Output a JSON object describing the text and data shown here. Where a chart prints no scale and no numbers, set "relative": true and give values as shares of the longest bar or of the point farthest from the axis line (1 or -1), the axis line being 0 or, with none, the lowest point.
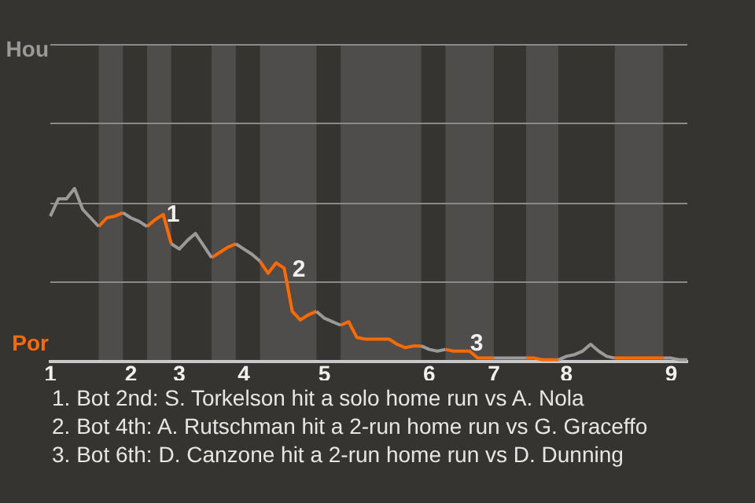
{
  "chart_data": {
    "type": "line",
    "relative": true,
    "legend": false,
    "ref_lines": [
      {
        "axis": "y",
        "value": 0.46,
        "color": "#8a8a8a"
      },
      {
        "axis": "y",
        "value": 0.92,
        "color": "#8a8a8a"
      },
      {
        "axis": "y",
        "value": 1.38,
        "color": "#8a8a8a"
      }
    ],
    "marker": "none",
    "line_style": "solid",
    "categories": [
      "1",
      null,
      null,
      null,
      null,
      null,
      null,
      null,
      null,
      null,
      "2",
      null,
      null,
      null,
      null,
      null,
      "3",
      null,
      null,
      null,
      null,
      null,
      null,
      null,
      "4",
      null,
      null,
      null,
      null,
      null,
      null,
      null,
      null,
      null,
      "5",
      null,
      null,
      null,
      null,
      null,
      null,
      null,
      null,
      null,
      null,
      null,
      null,
      "6",
      null,
      null,
      null,
      null,
      null,
      null,
      null,
      "7",
      null,
      null,
      null,
      null,
      null,
      null,
      null,
      null,
      "8",
      null,
      null,
      null,
      null,
      null,
      null,
      null,
      null,
      null,
      null,
      null,
      null,
      "9",
      null,
      null
    ],
    "series": [
      {
        "name": "Hou",
        "color": "#9a9a9a",
        "values": [
          0.84,
          0.94,
          0.94,
          1,
          0.88,
          0.83,
          0.78,
          null,
          null,
          0.86,
          0.83,
          0.81,
          0.78,
          null,
          null,
          0.68,
          0.65,
          0.7,
          0.74,
          0.67,
          0.6,
          null,
          null,
          0.68,
          0.65,
          0.62,
          0.58,
          null,
          null,
          null,
          null,
          null,
          null,
          0.29,
          0.25,
          0.23,
          0.21,
          null,
          null,
          null,
          null,
          null,
          null,
          null,
          null,
          null,
          0.09,
          0.07,
          0.06,
          0.07,
          null,
          null,
          null,
          null,
          null,
          0.02,
          0.02,
          0.02,
          0.02,
          0.02,
          null,
          null,
          null,
          0.01,
          0.03,
          0.04,
          0.06,
          0.1,
          0.06,
          0.03,
          0.02,
          null,
          null,
          null,
          null,
          null,
          0.02,
          0.02,
          0.01,
          0.01
        ]
      },
      {
        "name": "Por",
        "color": "#ff6a00",
        "values": [
          null,
          null,
          null,
          null,
          null,
          null,
          0.78,
          0.83,
          0.84,
          0.86,
          null,
          null,
          0.78,
          0.82,
          0.85,
          0.68,
          null,
          null,
          null,
          null,
          0.6,
          0.63,
          0.66,
          0.68,
          null,
          null,
          0.58,
          0.51,
          0.57,
          0.54,
          0.29,
          0.24,
          0.27,
          0.29,
          null,
          null,
          0.21,
          0.23,
          0.14,
          0.13,
          0.13,
          0.13,
          0.13,
          0.1,
          0.08,
          0.09,
          0.09,
          null,
          null,
          0.07,
          0.06,
          0.06,
          0.06,
          0.02,
          0.02,
          0.02,
          null,
          null,
          null,
          0.02,
          0.02,
          0.01,
          0.01,
          0.01,
          null,
          null,
          null,
          null,
          null,
          null,
          0.02,
          0.02,
          0.02,
          0.02,
          0.02,
          0.02,
          0.02,
          null,
          null,
          null
        ]
      }
    ],
    "annotations": [
      "1",
      "2",
      "3",
      "1. Bot 2nd: S. Torkelson hit a solo home run vs A. Nola",
      "2. Bot 4th: A. Rutschman hit a 2-run home run vs G. Graceffo",
      "3. Bot 6th: D. Canzone hit a 2-run home run vs D. Dunning"
    ]
  }
}
